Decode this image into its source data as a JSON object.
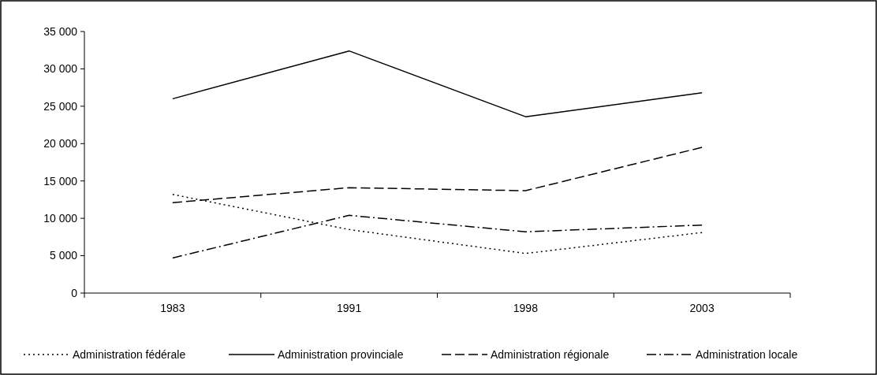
{
  "chart_data": {
    "type": "line",
    "categories": [
      "1983",
      "1991",
      "1998",
      "2003"
    ],
    "series": [
      {
        "name": "Administration fédérale",
        "color": "#000000",
        "line_style": "dotted",
        "values": [
          13200,
          8500,
          5300,
          8100
        ]
      },
      {
        "name": "Administration provinciale",
        "color": "#000000",
        "line_style": "solid",
        "values": [
          26000,
          32400,
          23600,
          26800
        ]
      },
      {
        "name": "Administration régionale",
        "color": "#000000",
        "line_style": "dashed",
        "values": [
          12100,
          14100,
          13700,
          19500
        ]
      },
      {
        "name": "Administration locale",
        "color": "#000000",
        "line_style": "dashdot",
        "values": [
          4700,
          10400,
          8200,
          9100
        ]
      }
    ],
    "ylim": [
      0,
      35000
    ],
    "yticks": [
      0,
      {
        "value": 5000,
        "label": "5 000"
      },
      {
        "value": 10000,
        "label": "10 000"
      },
      {
        "value": 15000,
        "label": "15 000"
      },
      {
        "value": 20000,
        "label": "20 000"
      },
      {
        "value": 25000,
        "label": "25 000"
      },
      {
        "value": 30000,
        "label": "30 000"
      },
      {
        "value": 35000,
        "label": "35 000"
      }
    ],
    "grid": false,
    "legend": "bottom",
    "marker": "none"
  }
}
